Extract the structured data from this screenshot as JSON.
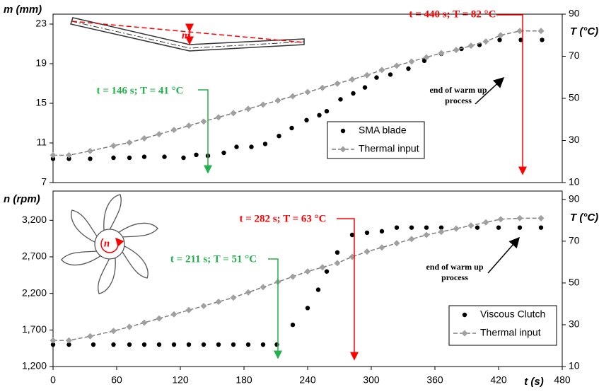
{
  "chart_data": [
    {
      "type": "scatter",
      "ylabel": "m (mm)",
      "y2label": "T (°C)",
      "xlim": [
        0,
        480
      ],
      "ylim": [
        7,
        24
      ],
      "yticks": [
        7,
        11,
        15,
        19,
        23
      ],
      "y2lim": [
        10,
        90
      ],
      "y2ticks": [
        10,
        30,
        50,
        70,
        90
      ],
      "inset_label": "m",
      "series": [
        {
          "name": "SMA blade",
          "color": "#000000",
          "mode": "markers",
          "marker": "circle",
          "x": [
            0,
            15,
            35,
            57,
            72,
            86,
            105,
            123,
            135,
            146,
            161,
            173,
            187,
            200,
            213,
            225,
            239,
            251,
            258,
            271,
            283,
            294,
            305,
            318,
            335,
            350,
            366,
            385,
            402,
            421,
            441,
            461
          ],
          "values": [
            9.4,
            9.4,
            9.4,
            9.5,
            9.5,
            9.6,
            9.6,
            9.5,
            9.8,
            9.7,
            10,
            10.6,
            10.6,
            10.9,
            11.7,
            12.5,
            13.3,
            13.8,
            14.2,
            15.4,
            16,
            16.6,
            17.6,
            17.9,
            18.5,
            19.3,
            20,
            20.5,
            20.9,
            21.4,
            21.4,
            21.4
          ]
        },
        {
          "name": "Thermal input",
          "color": "#7f7f7f",
          "marker_color": "#a0a0a0",
          "mode": "lines+markers",
          "marker": "diamond",
          "axis": "y2",
          "x": [
            0,
            15,
            35,
            57,
            72,
            86,
            100,
            114,
            128,
            142,
            156,
            170,
            184,
            198,
            212,
            226,
            240,
            254,
            268,
            282,
            296,
            310,
            324,
            338,
            352,
            366,
            380,
            394,
            408,
            422,
            440,
            460
          ],
          "values": [
            23,
            23,
            25,
            27.5,
            29,
            31,
            33,
            35,
            37,
            39,
            41,
            43,
            45,
            47,
            49,
            51,
            53,
            55,
            57,
            59,
            61,
            63.5,
            65.5,
            67.5,
            69.5,
            71.5,
            73,
            75,
            77,
            80,
            82,
            82
          ]
        }
      ],
      "annotations": [
        {
          "text": "t = 146 s; T = 41 °C",
          "color": "#22b14c"
        },
        {
          "text": "t = 440 s; T = 82 °C",
          "color": "#ff0000"
        },
        {
          "text": [
            "end of warm up",
            "process"
          ],
          "color": "#000000"
        }
      ]
    },
    {
      "type": "scatter",
      "ylabel": "n (rpm)",
      "y2label": "T (°C)",
      "xlabel": "t (s)",
      "xlim": [
        0,
        480
      ],
      "xticks": [
        0,
        60,
        120,
        180,
        240,
        300,
        360,
        420,
        480
      ],
      "ylim": [
        1200,
        3600
      ],
      "yticks": [
        {
          "value": 1200,
          "label": "1,200"
        },
        {
          "value": 1700,
          "label": "1,700"
        },
        {
          "value": 2200,
          "label": "2,200"
        },
        {
          "value": 2700,
          "label": "2,700"
        },
        {
          "value": 3200,
          "label": "3,200"
        }
      ],
      "y2lim": [
        10,
        94
      ],
      "y2ticks": [
        10,
        30,
        50,
        70,
        90
      ],
      "inset_label": "n",
      "series": [
        {
          "name": "Viscous Clutch",
          "color": "#000000",
          "mode": "markers",
          "marker": "circle",
          "x": [
            0,
            15,
            38,
            57,
            72,
            86,
            100,
            114,
            128,
            142,
            156,
            170,
            184,
            198,
            211,
            226,
            240,
            250,
            258,
            268,
            282,
            296,
            310,
            324,
            338,
            352,
            366,
            400,
            420,
            440,
            460
          ],
          "values": [
            1500,
            1500,
            1500,
            1500,
            1500,
            1500,
            1500,
            1500,
            1500,
            1500,
            1500,
            1500,
            1500,
            1500,
            1500,
            1770,
            2000,
            2250,
            2500,
            2760,
            3000,
            3030,
            3050,
            3100,
            3100,
            3100,
            3100,
            3100,
            3100,
            3100,
            3100
          ]
        },
        {
          "name": "Thermal input",
          "color": "#7f7f7f",
          "marker_color": "#a0a0a0",
          "mode": "lines+markers",
          "marker": "diamond",
          "axis": "y2",
          "x": [
            0,
            15,
            35,
            57,
            72,
            86,
            100,
            114,
            128,
            142,
            156,
            170,
            184,
            198,
            212,
            226,
            240,
            254,
            268,
            282,
            296,
            310,
            324,
            338,
            352,
            366,
            380,
            394,
            408,
            422,
            440,
            460
          ],
          "values": [
            22.5,
            22.5,
            24.5,
            27,
            29,
            31,
            33,
            35,
            37,
            39,
            41,
            43,
            45.5,
            48,
            50.5,
            53,
            55.5,
            57.5,
            59.5,
            62.5,
            65,
            67,
            69,
            71,
            73,
            74.5,
            76,
            77.5,
            79,
            80.5,
            81,
            81
          ]
        }
      ],
      "annotations": [
        {
          "text": "t = 211 s; T = 51 °C",
          "color": "#22b14c"
        },
        {
          "text": "t = 282 s; T = 63 °C",
          "color": "#ff0000"
        },
        {
          "text": [
            "end of warm up",
            "process"
          ],
          "color": "#000000"
        }
      ]
    }
  ]
}
